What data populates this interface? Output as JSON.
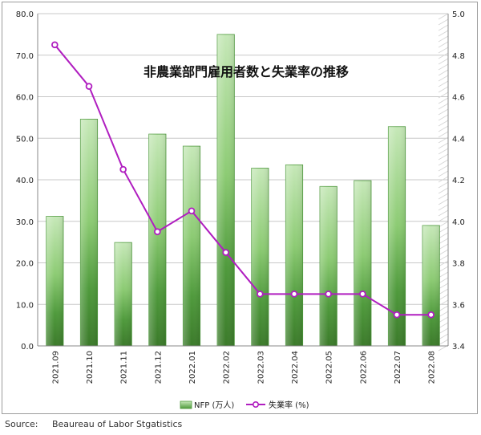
{
  "source": "Source:     Beaureau of Labor Stgatistics",
  "chart_data": {
    "type": "bar",
    "title": "非農業部門雇用者数と失業率の推移",
    "categories": [
      "2021.09",
      "2021.10",
      "2021.11",
      "2021.12",
      "2022.01",
      "2022.02",
      "2022.03",
      "2022.04",
      "2022.05",
      "2022.06",
      "2022.07",
      "2022.08"
    ],
    "series": [
      {
        "name": "NFP (万人)",
        "type": "bar",
        "axis": "left",
        "values": [
          31.2,
          54.6,
          24.9,
          51.0,
          48.1,
          75.0,
          42.8,
          43.6,
          38.4,
          39.8,
          52.8,
          29.0
        ]
      },
      {
        "name": "失業率 (%)",
        "type": "line",
        "axis": "right",
        "values": [
          4.85,
          4.65,
          4.25,
          3.95,
          4.05,
          3.85,
          3.65,
          3.65,
          3.65,
          3.65,
          3.55,
          3.55
        ]
      }
    ],
    "y_left": {
      "min": 0,
      "max": 80,
      "ticks": [
        "0.0",
        "10.0",
        "20.0",
        "30.0",
        "40.0",
        "50.0",
        "60.0",
        "70.0",
        "80.0"
      ]
    },
    "y_right": {
      "min": 3.4,
      "max": 5.0,
      "ticks": [
        "3.4",
        "3.6",
        "3.8",
        "4.0",
        "4.2",
        "4.4",
        "4.6",
        "4.8",
        "5.0"
      ]
    },
    "grid": true,
    "legend_position": "bottom",
    "colors": {
      "bar_dark": "#3f7f2e",
      "bar_mid": "#5da548",
      "bar_light": "#b8e0a8",
      "bar_edge": "#4e9a3c",
      "line": "#b01ec0",
      "grid": "#c8c8c8"
    }
  }
}
